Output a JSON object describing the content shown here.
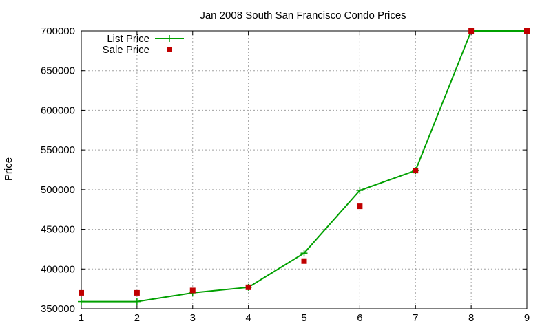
{
  "chart_data": {
    "type": "line",
    "title": "Jan 2008 South San Francisco Condo Prices",
    "xlabel": "",
    "ylabel": "Price",
    "xlim": [
      1,
      9
    ],
    "ylim": [
      350000,
      700000
    ],
    "xticks": [
      "1",
      "2",
      "3",
      "4",
      "5",
      "6",
      "7",
      "8",
      "9"
    ],
    "yticks": [
      "350000",
      "400000",
      "450000",
      "500000",
      "550000",
      "600000",
      "650000",
      "700000"
    ],
    "grid": true,
    "legend_position": "top-left",
    "series": [
      {
        "name": "List Price",
        "style": "line-with-plus-markers",
        "color": "#00a000",
        "x": [
          1,
          2,
          3,
          4,
          5,
          6,
          7,
          8,
          9
        ],
        "y": [
          359000,
          359000,
          370000,
          377000,
          420000,
          499000,
          524000,
          700000,
          700000
        ]
      },
      {
        "name": "Sale Price",
        "style": "square-markers",
        "color": "#c00000",
        "x": [
          1,
          2,
          3,
          4,
          5,
          6,
          7,
          8,
          9
        ],
        "y": [
          370000,
          370000,
          373000,
          377000,
          410000,
          479000,
          524000,
          700000,
          700000
        ]
      }
    ]
  }
}
